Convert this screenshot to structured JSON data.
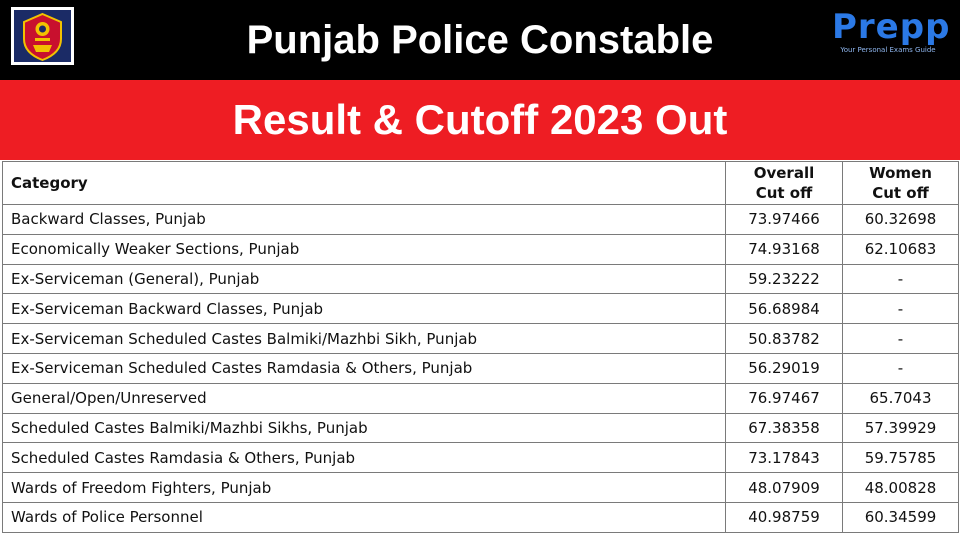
{
  "header": {
    "title": "Punjab Police Constable",
    "subtitle": "Result & Cutoff 2023 Out",
    "logo_icon": "punjab-police-emblem-icon",
    "brand_name": "Prepp",
    "brand_tagline": "Your Personal Exams Guide"
  },
  "colors": {
    "top_bar": "#000000",
    "banner": "#ee1d23",
    "brand": "#2b79e6"
  },
  "table": {
    "headers": {
      "category": "Category",
      "overall_line1": "Overall",
      "overall_line2": "Cut off",
      "women_line1": "Women",
      "women_line2": "Cut off"
    },
    "rows": [
      {
        "category": "Backward Classes, Punjab",
        "overall": "73.97466",
        "women": "60.32698"
      },
      {
        "category": "Economically Weaker Sections, Punjab",
        "overall": "74.93168",
        "women": "62.10683"
      },
      {
        "category": "Ex-Serviceman (General), Punjab",
        "overall": "59.23222",
        "women": "-"
      },
      {
        "category": "Ex-Serviceman Backward Classes, Punjab",
        "overall": "56.68984",
        "women": "-"
      },
      {
        "category": "Ex-Serviceman Scheduled Castes Balmiki/Mazhbi Sikh, Punjab",
        "overall": "50.83782",
        "women": "-"
      },
      {
        "category": "Ex-Serviceman Scheduled Castes Ramdasia & Others, Punjab",
        "overall": "56.29019",
        "women": "-"
      },
      {
        "category": "General/Open/Unreserved",
        "overall": "76.97467",
        "women": "65.7043"
      },
      {
        "category": "Scheduled Castes Balmiki/Mazhbi Sikhs, Punjab",
        "overall": "67.38358",
        "women": "57.39929"
      },
      {
        "category": "Scheduled Castes Ramdasia & Others, Punjab",
        "overall": "73.17843",
        "women": "59.75785"
      },
      {
        "category": "Wards of Freedom Fighters, Punjab",
        "overall": "48.07909",
        "women": "48.00828"
      },
      {
        "category": "Wards of Police Personnel",
        "overall": "40.98759",
        "women": "60.34599"
      }
    ]
  }
}
